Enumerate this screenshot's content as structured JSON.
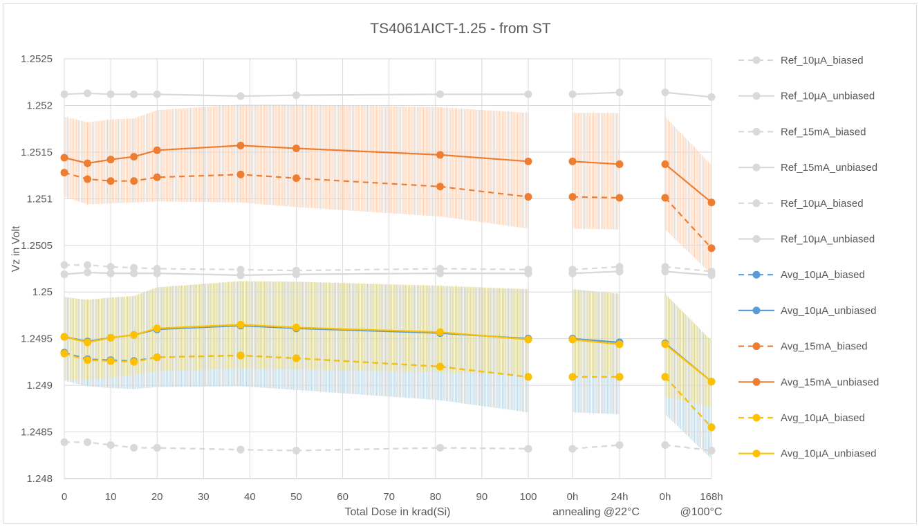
{
  "chart_data": {
    "type": "line",
    "title": "TS4061AICT-1.25 - from ST",
    "xlabel": "Total Dose in krad(Si)",
    "ylabel": "Vz in Volt",
    "ylim": [
      1.248,
      1.2525
    ],
    "yticks": [
      "1.248",
      "1.2485",
      "1.249",
      "1.2495",
      "1.25",
      "1.2505",
      "1.251",
      "1.2515",
      "1.252",
      "1.2525"
    ],
    "x": [
      0,
      5,
      10,
      15,
      20,
      38,
      50,
      81,
      100,
      "0h",
      "24h",
      "0h",
      "168h"
    ],
    "segments": [
      [
        0,
        8
      ],
      [
        9,
        10
      ],
      [
        11,
        12
      ]
    ],
    "xticks_dose": [
      "0",
      "10",
      "20",
      "30",
      "40",
      "50",
      "60",
      "70",
      "80",
      "90",
      "100"
    ],
    "xticks_anneal": [
      "0h",
      "24h",
      "0h",
      "168h"
    ],
    "anneal_labels": [
      "annealing  @22°C",
      "@100°C"
    ],
    "grid": true,
    "legend_position": "right",
    "series": [
      {
        "name": "Ref_10µA_biased",
        "color": "#d9d9d9",
        "dashed": true,
        "values": [
          1.24839,
          1.24839,
          1.24836,
          1.24833,
          1.24833,
          1.24831,
          1.2483,
          1.24833,
          1.24832,
          1.24832,
          1.24836,
          1.24836,
          1.2483
        ]
      },
      {
        "name": "Ref_10µA_unbiased",
        "color": "#d9d9d9",
        "dashed": false,
        "values": [
          1.25212,
          1.25213,
          1.25212,
          1.25212,
          1.25212,
          1.2521,
          1.25211,
          1.25212,
          1.25212,
          1.25212,
          1.25214,
          1.25214,
          1.25209
        ]
      },
      {
        "name": "Ref_15mA_biased",
        "color": "#d9d9d9",
        "dashed": true,
        "values": [
          1.25029,
          1.25029,
          1.25027,
          1.25026,
          1.25025,
          1.25024,
          1.25023,
          1.25025,
          1.25024,
          1.25024,
          1.25027,
          1.25027,
          1.25022
        ]
      },
      {
        "name": "Ref_15mA_unbiased",
        "color": "#d9d9d9",
        "dashed": false,
        "values": [
          1.25019,
          1.25021,
          1.2502,
          1.2502,
          1.2502,
          1.25018,
          1.25019,
          1.2502,
          1.2502,
          1.2502,
          1.25022,
          1.25022,
          1.25018
        ]
      },
      {
        "name": "Ref_10µA_biased",
        "color": "#d9d9d9",
        "dashed": true,
        "values": [
          1.24839,
          1.24839,
          1.24836,
          1.24833,
          1.24833,
          1.24831,
          1.2483,
          1.24833,
          1.24832,
          1.24832,
          1.24836,
          1.24836,
          1.2483
        ]
      },
      {
        "name": "Ref_10µA_unbiased",
        "color": "#d9d9d9",
        "dashed": false,
        "values": [
          1.25019,
          1.25021,
          1.2502,
          1.2502,
          1.2502,
          1.25018,
          1.25019,
          1.2502,
          1.2502,
          1.2502,
          1.25022,
          1.25022,
          1.25018
        ]
      },
      {
        "name": "Avg_10µA_biased",
        "color": "#5b9bd5",
        "dashed": true,
        "values": [
          1.24935,
          1.24928,
          1.24927,
          1.24926,
          1.2493,
          1.24932,
          1.24929,
          1.2492,
          1.24909,
          1.24909,
          1.24909,
          1.24909,
          1.24855
        ]
      },
      {
        "name": "Avg_10µA_unbiased",
        "color": "#5b9bd5",
        "dashed": false,
        "values": [
          1.24952,
          1.24947,
          1.24951,
          1.24954,
          1.2496,
          1.24964,
          1.24961,
          1.24956,
          1.2495,
          1.2495,
          1.24946,
          1.24945,
          1.24904
        ]
      },
      {
        "name": "Avg_15mA_biased",
        "color": "#ed7d31",
        "dashed": true,
        "values": [
          1.25128,
          1.25121,
          1.25119,
          1.25119,
          1.25123,
          1.25126,
          1.25122,
          1.25113,
          1.25102,
          1.25102,
          1.25101,
          1.25101,
          1.25047
        ]
      },
      {
        "name": "Avg_15mA_unbiased",
        "color": "#ed7d31",
        "dashed": false,
        "values": [
          1.25144,
          1.25138,
          1.25142,
          1.25145,
          1.25152,
          1.25157,
          1.25154,
          1.25147,
          1.2514,
          1.2514,
          1.25137,
          1.25137,
          1.25096
        ]
      },
      {
        "name": "Avg_10µA_biased",
        "color": "#ffc000",
        "dashed": true,
        "values": [
          1.24934,
          1.24927,
          1.24926,
          1.24925,
          1.2493,
          1.24932,
          1.24929,
          1.2492,
          1.24909,
          1.24909,
          1.24909,
          1.24909,
          1.24855
        ]
      },
      {
        "name": "Avg_10µA_unbiased",
        "color": "#ffc000",
        "dashed": false,
        "values": [
          1.24952,
          1.24946,
          1.24951,
          1.24954,
          1.24961,
          1.24965,
          1.24962,
          1.24957,
          1.24949,
          1.24949,
          1.24944,
          1.24944,
          1.24904
        ]
      }
    ],
    "error_bands": [
      {
        "color": "#f8cbad",
        "upper": [
          1.25188,
          1.25182,
          1.25185,
          1.25186,
          1.25195,
          1.25201,
          1.25201,
          1.25198,
          1.25192,
          1.25192,
          1.25192,
          1.25188,
          1.25136
        ],
        "lower": [
          1.25102,
          1.25094,
          1.25095,
          1.25096,
          1.25097,
          1.25096,
          1.25091,
          1.25081,
          1.25068,
          1.25068,
          1.25067,
          1.25067,
          1.25019
        ]
      },
      {
        "color": "#b4d0df",
        "upper": [
          1.24995,
          1.24991,
          1.24994,
          1.24995,
          1.25005,
          1.25011,
          1.25011,
          1.25006,
          1.25003,
          1.25003,
          1.24998,
          1.24998,
          1.24948
        ]
      },
      {
        "color": "#e7d98f",
        "upper": [
          1.24994,
          1.24992,
          1.24994,
          1.24996,
          1.25005,
          1.25012,
          1.25011,
          1.25007,
          1.25003,
          1.25003,
          1.24998,
          1.24998,
          1.24948
        ],
        "lower": [
          1.24906,
          1.24906,
          1.24908,
          1.24911,
          1.24915,
          1.24918,
          1.24917,
          1.24914,
          1.24911,
          1.24911,
          1.24911,
          1.24888,
          1.24876
        ]
      }
    ],
    "error_band_lower_blue": [
      1.24905,
      1.24899,
      1.24897,
      1.24896,
      1.24898,
      1.24899,
      1.24895,
      1.24884,
      1.24871,
      1.24871,
      1.24869,
      1.24869,
      1.24821
    ]
  }
}
